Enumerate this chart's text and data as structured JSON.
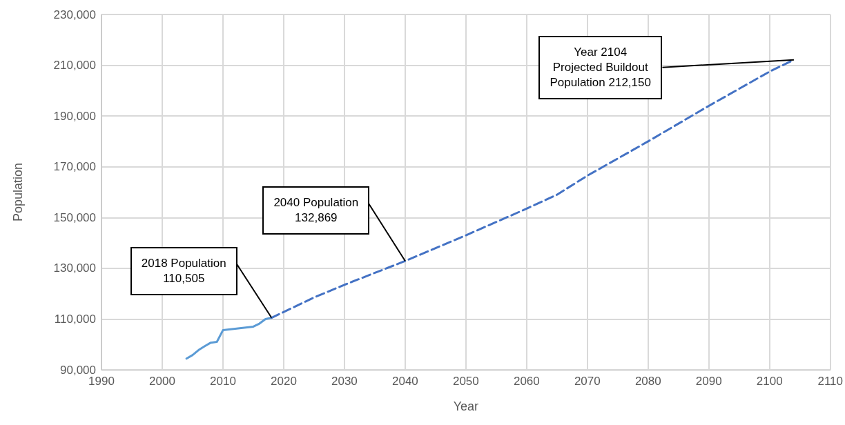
{
  "chart_data": {
    "type": "line",
    "xlabel": "Year",
    "ylabel": "Population",
    "xlim": [
      1990,
      2110
    ],
    "xticks": [
      1990,
      2000,
      2010,
      2020,
      2030,
      2040,
      2050,
      2060,
      2070,
      2080,
      2090,
      2100,
      2110
    ],
    "ylim": [
      90000,
      230000
    ],
    "yticks": [
      {
        "value": 90000,
        "label": "90,000"
      },
      {
        "value": 110000,
        "label": "110,000"
      },
      {
        "value": 130000,
        "label": "130,000"
      },
      {
        "value": 150000,
        "label": "150,000"
      },
      {
        "value": 170000,
        "label": "170,000"
      },
      {
        "value": 190000,
        "label": "190,000"
      },
      {
        "value": 210000,
        "label": "210,000"
      },
      {
        "value": 230000,
        "label": "230,000"
      }
    ],
    "grid": true,
    "marker": "none",
    "series": [
      {
        "color": "#5b9bd5",
        "line_style": "solid",
        "x": [
          2004,
          2005,
          2006,
          2007,
          2008,
          2009,
          2010,
          2015,
          2016,
          2017,
          2018
        ],
        "values": [
          94400,
          95800,
          97800,
          99300,
          100700,
          101000,
          105600,
          107000,
          108200,
          110000,
          110505
        ]
      },
      {
        "color": "#4472c4",
        "line_style": "dashed",
        "x": [
          2018,
          2025,
          2030,
          2040,
          2050,
          2060,
          2065,
          2070,
          2080,
          2090,
          2100,
          2104
        ],
        "values": [
          110505,
          118500,
          123500,
          132869,
          143000,
          153500,
          159000,
          166500,
          180000,
          194000,
          207500,
          212150
        ]
      }
    ],
    "annotations": [
      {
        "text": "2018 Population\n110,505",
        "x": 2018,
        "y": 110505
      },
      {
        "text": "2040 Population\n132,869",
        "x": 2040,
        "y": 132869
      },
      {
        "text": "Year 2104\nProjected Buildout\nPopulation 212,150",
        "x": 2104,
        "y": 212150
      }
    ]
  }
}
